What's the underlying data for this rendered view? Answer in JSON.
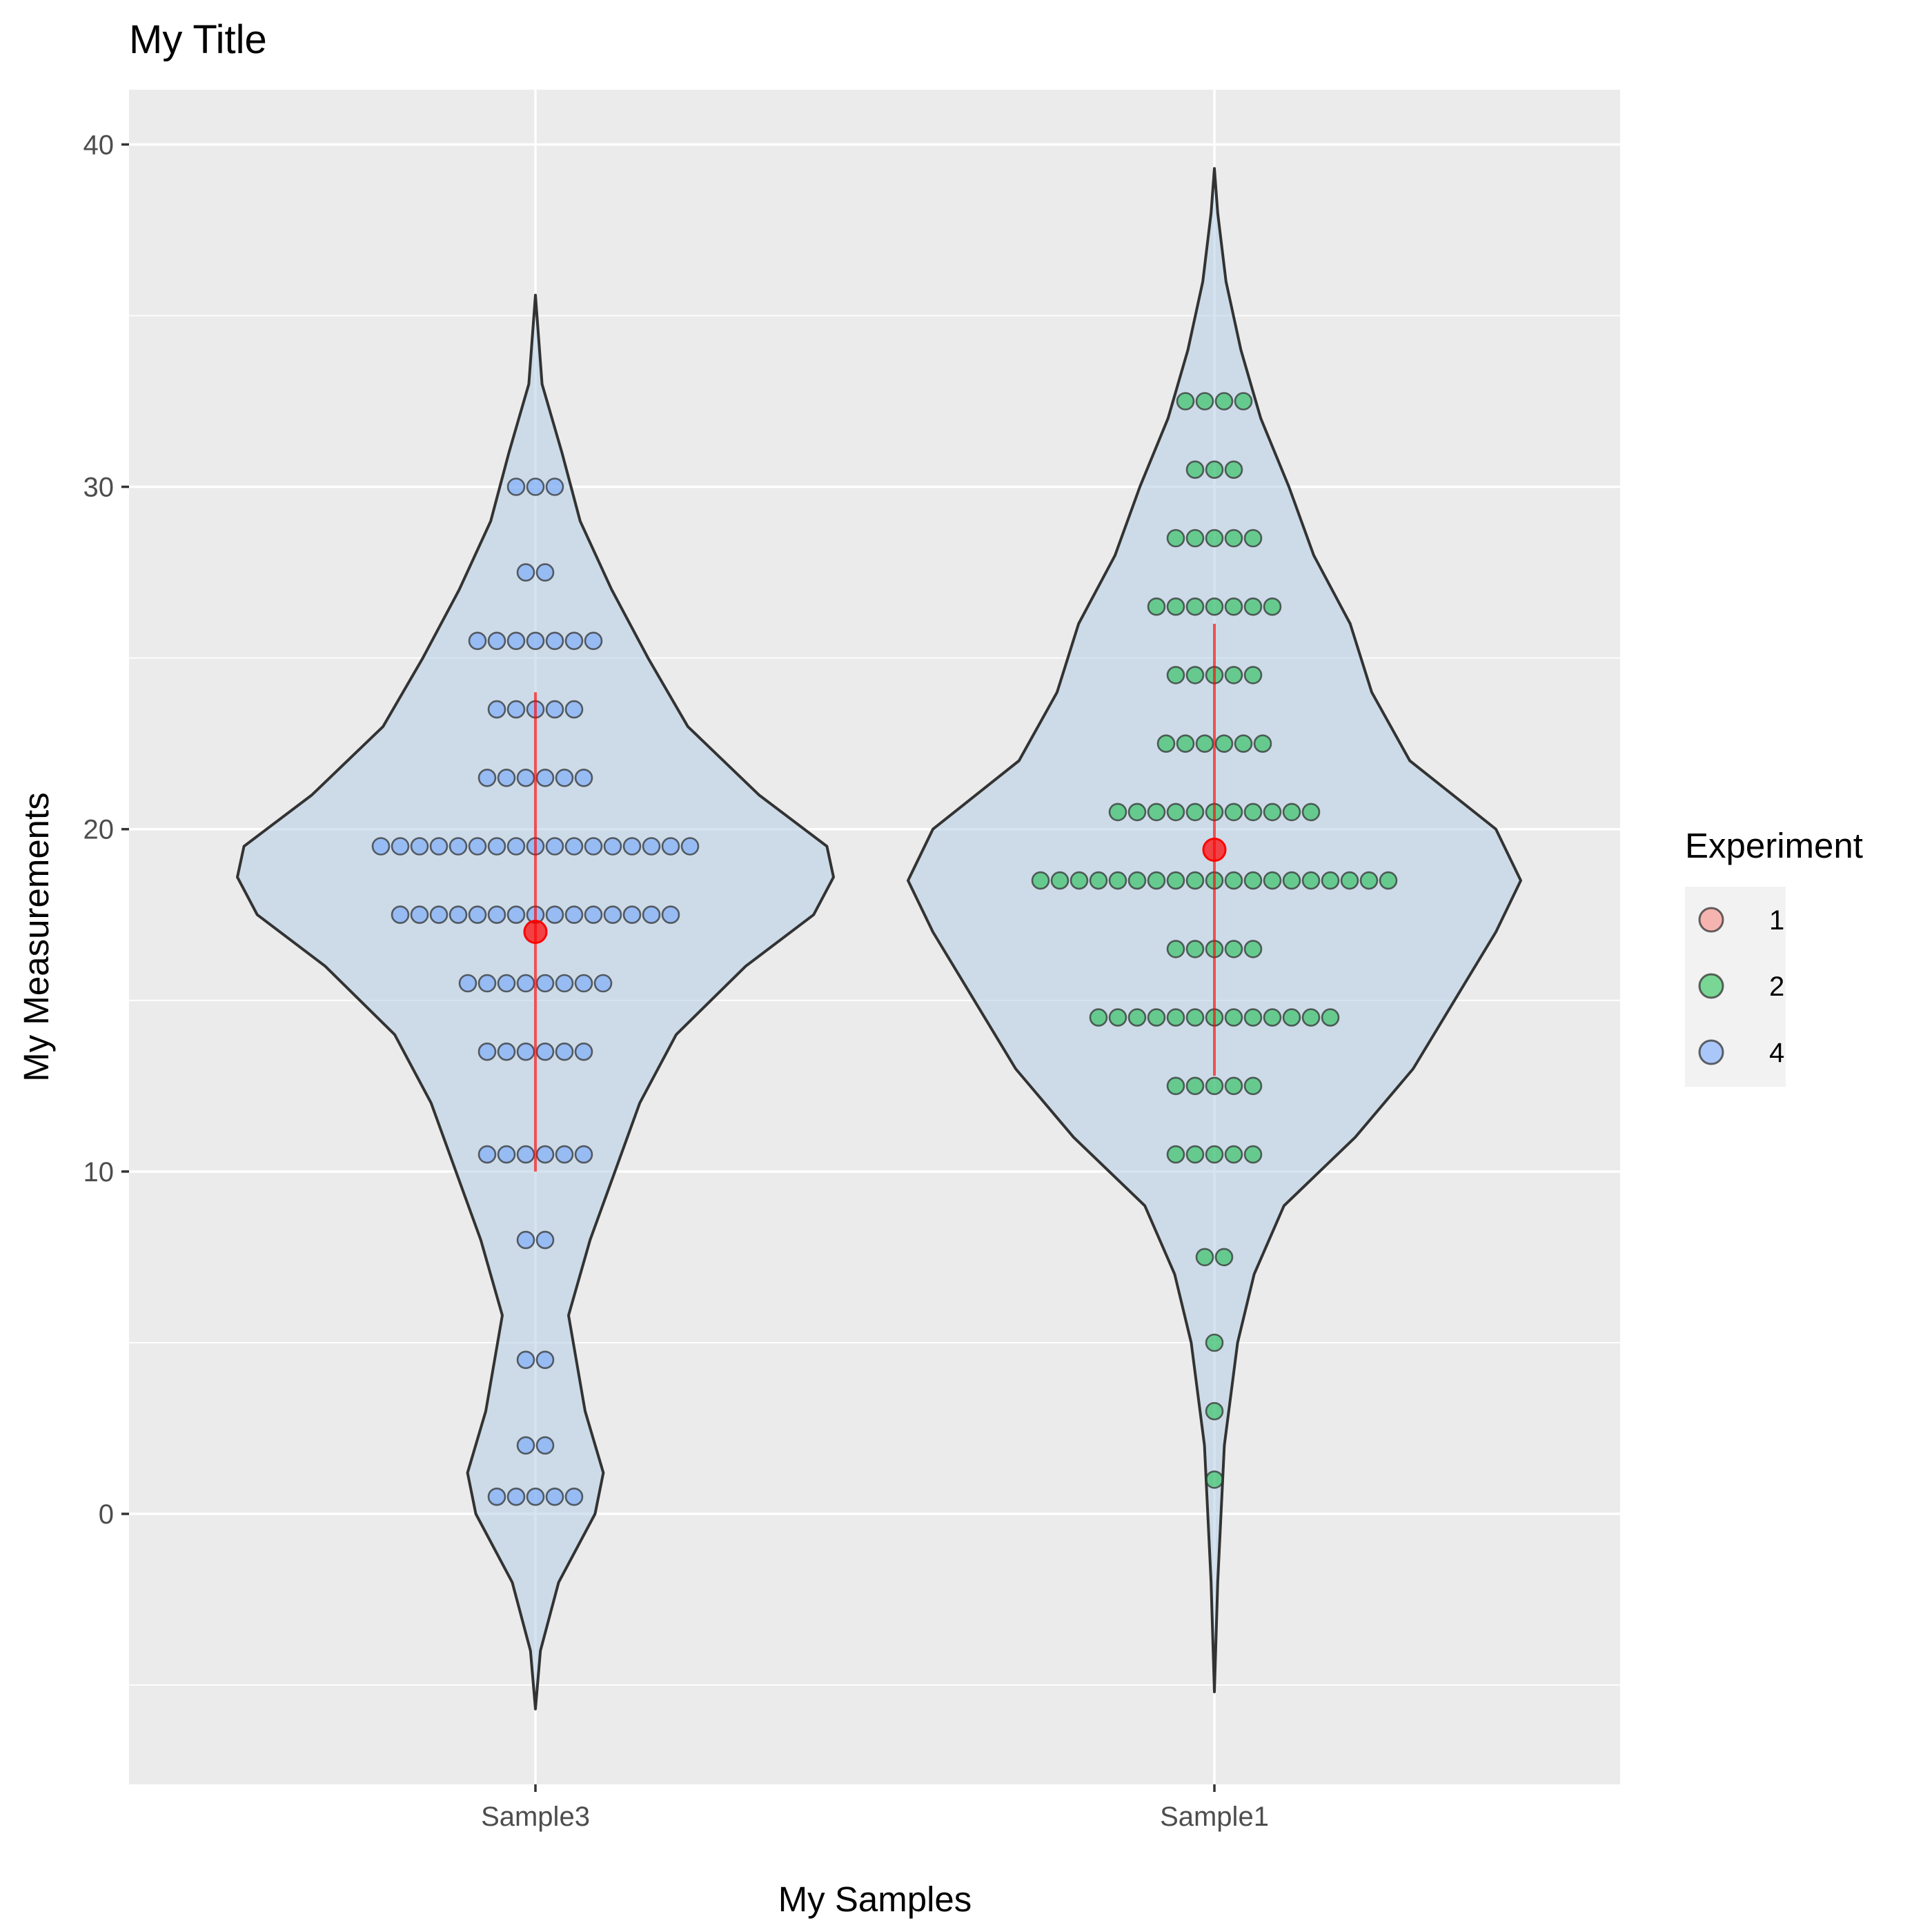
{
  "chart_data": {
    "type": "violin",
    "title": "My Title",
    "xlabel": "My Samples",
    "ylabel": "My Measurements",
    "categories": [
      "Sample3",
      "Sample1"
    ],
    "ylim": [
      -7.9,
      41.6
    ],
    "yticks": [
      0,
      10,
      20,
      30,
      40
    ],
    "grid": true,
    "legend": {
      "title": "Experiment",
      "position": "right",
      "entries": [
        {
          "label": "1",
          "color": "#F8766D"
        },
        {
          "label": "2",
          "color": "#00BA38"
        },
        {
          "label": "4",
          "color": "#619CFF"
        }
      ]
    },
    "violin_fill": "#b3cde3",
    "violin_outline": "#333333",
    "summary_color": "#ff0000",
    "series": [
      {
        "category": "Sample3",
        "experiment": "4",
        "mean": 17.0,
        "range_line": [
          10.0,
          24.0
        ],
        "violin_extent": [
          -5.7,
          35.6
        ],
        "violin_width": [
          [
            -5.7,
            0.0
          ],
          [
            -4.0,
            0.03
          ],
          [
            -2.0,
            0.14
          ],
          [
            0.0,
            0.36
          ],
          [
            1.2,
            0.41
          ],
          [
            3.0,
            0.3
          ],
          [
            5.8,
            0.2
          ],
          [
            8.0,
            0.33
          ],
          [
            10.0,
            0.48
          ],
          [
            12.0,
            0.63
          ],
          [
            14.0,
            0.85
          ],
          [
            16.0,
            1.27
          ],
          [
            17.5,
            1.68
          ],
          [
            18.6,
            1.8
          ],
          [
            19.5,
            1.76
          ],
          [
            21.0,
            1.35
          ],
          [
            23.0,
            0.92
          ],
          [
            25.0,
            0.68
          ],
          [
            27.0,
            0.46
          ],
          [
            29.0,
            0.27
          ],
          [
            31.0,
            0.16
          ],
          [
            33.0,
            0.04
          ],
          [
            35.6,
            0.0
          ]
        ],
        "dot_rows": [
          {
            "y": 0.5,
            "count": 5
          },
          {
            "y": 2.0,
            "count": 2
          },
          {
            "y": 4.5,
            "count": 2
          },
          {
            "y": 8.0,
            "count": 2
          },
          {
            "y": 10.5,
            "count": 6
          },
          {
            "y": 13.5,
            "count": 6
          },
          {
            "y": 15.5,
            "count": 8
          },
          {
            "y": 17.5,
            "count": 15
          },
          {
            "y": 19.5,
            "count": 17
          },
          {
            "y": 21.5,
            "count": 6
          },
          {
            "y": 23.5,
            "count": 5
          },
          {
            "y": 25.5,
            "count": 7
          },
          {
            "y": 27.5,
            "count": 2
          },
          {
            "y": 30.0,
            "count": 3
          }
        ]
      },
      {
        "category": "Sample1",
        "experiment": "2",
        "mean": 19.4,
        "range_line": [
          12.8,
          26.0
        ],
        "violin_extent": [
          -5.2,
          39.3
        ],
        "violin_width": [
          [
            -5.2,
            0.0
          ],
          [
            -2.0,
            0.02
          ],
          [
            2.0,
            0.06
          ],
          [
            5.0,
            0.14
          ],
          [
            7.0,
            0.24
          ],
          [
            9.0,
            0.42
          ],
          [
            11.0,
            0.85
          ],
          [
            13.0,
            1.2
          ],
          [
            15.0,
            1.45
          ],
          [
            17.0,
            1.7
          ],
          [
            18.5,
            1.85
          ],
          [
            20.0,
            1.7
          ],
          [
            22.0,
            1.18
          ],
          [
            24.0,
            0.95
          ],
          [
            26.0,
            0.82
          ],
          [
            28.0,
            0.6
          ],
          [
            30.0,
            0.45
          ],
          [
            32.0,
            0.28
          ],
          [
            34.0,
            0.16
          ],
          [
            36.0,
            0.07
          ],
          [
            38.0,
            0.02
          ],
          [
            39.3,
            0.0
          ]
        ],
        "dot_rows": [
          {
            "y": 1.0,
            "count": 1
          },
          {
            "y": 3.0,
            "count": 1
          },
          {
            "y": 5.0,
            "count": 1
          },
          {
            "y": 7.5,
            "count": 2
          },
          {
            "y": 10.5,
            "count": 5
          },
          {
            "y": 12.5,
            "count": 5
          },
          {
            "y": 14.5,
            "count": 13
          },
          {
            "y": 16.5,
            "count": 5
          },
          {
            "y": 18.5,
            "count": 19
          },
          {
            "y": 20.5,
            "count": 11
          },
          {
            "y": 22.5,
            "count": 6
          },
          {
            "y": 24.5,
            "count": 5
          },
          {
            "y": 26.5,
            "count": 7
          },
          {
            "y": 28.5,
            "count": 5
          },
          {
            "y": 30.5,
            "count": 3
          },
          {
            "y": 32.5,
            "count": 4
          }
        ]
      }
    ]
  }
}
